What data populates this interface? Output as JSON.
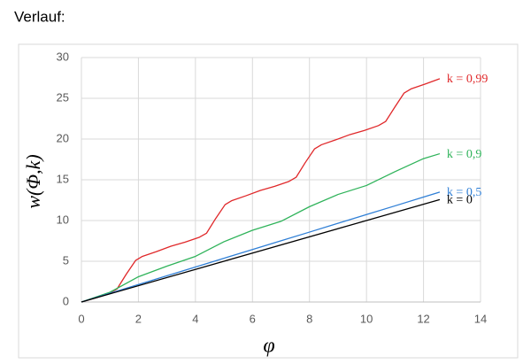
{
  "chart_data": {
    "type": "line",
    "title": "Verlauf:",
    "xlabel": "φ",
    "ylabel": "w(Φ,k)",
    "xlim": [
      0,
      14
    ],
    "xticks": [
      0,
      2,
      4,
      6,
      8,
      10,
      12,
      14
    ],
    "ylim": [
      0,
      30
    ],
    "yticks": [
      0,
      5,
      10,
      15,
      20,
      25,
      30
    ],
    "grid": true,
    "series": [
      {
        "name": "k = 0,99",
        "color": "#e0282a",
        "x": [
          0,
          0.5,
          1,
          1.25,
          1.57,
          1.9,
          2.14,
          2.64,
          3.14,
          3.64,
          4.14,
          4.39,
          4.71,
          5.04,
          5.28,
          5.78,
          6.28,
          6.78,
          7.28,
          7.53,
          7.85,
          8.18,
          8.42,
          8.92,
          9.42,
          9.92,
          10.42,
          10.67,
          11.0,
          11.32,
          11.56,
          12.06,
          12.57
        ],
        "values": [
          0,
          0.5,
          1.1,
          1.6,
          3.4,
          5.1,
          5.6,
          6.2,
          6.85,
          7.35,
          7.95,
          8.45,
          10.25,
          11.95,
          12.45,
          13.05,
          13.7,
          14.2,
          14.8,
          15.3,
          17.1,
          18.8,
          19.3,
          19.9,
          20.55,
          21.05,
          21.65,
          22.15,
          23.95,
          25.65,
          26.15,
          26.75,
          27.4
        ]
      },
      {
        "name": "k = 0,9",
        "color": "#2fb35a",
        "x": [
          0,
          1,
          2,
          3,
          4,
          5,
          6,
          7,
          8,
          9,
          10,
          11,
          12,
          12.57
        ],
        "values": [
          0,
          1.2,
          3.1,
          4.4,
          5.6,
          7.4,
          8.8,
          9.9,
          11.7,
          13.2,
          14.3,
          16.0,
          17.6,
          18.2
        ]
      },
      {
        "name": "k = 0,5",
        "color": "#2f7fd6",
        "x": [
          0,
          1,
          2,
          3,
          4,
          5,
          6,
          7,
          8,
          9,
          10,
          11,
          12,
          12.57
        ],
        "values": [
          0,
          1.07,
          2.15,
          3.22,
          4.29,
          5.37,
          6.44,
          7.51,
          8.58,
          9.66,
          10.73,
          11.8,
          12.88,
          13.49
        ]
      },
      {
        "name": "k = 0",
        "color": "#000000",
        "x": [
          0,
          12.57
        ],
        "values": [
          0,
          12.57
        ]
      }
    ]
  }
}
